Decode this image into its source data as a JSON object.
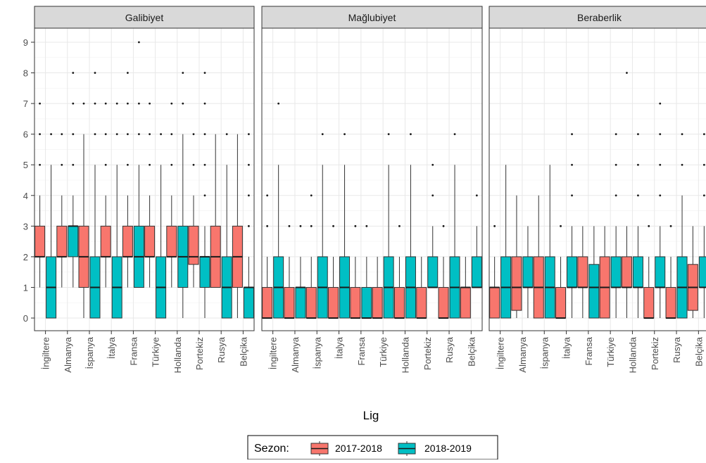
{
  "chart_data": {
    "type": "boxplot",
    "xlabel": "Lig",
    "ylabel": "",
    "ylim": [
      0,
      9
    ],
    "y_ticks": [
      0,
      1,
      2,
      3,
      4,
      5,
      6,
      7,
      8,
      9
    ],
    "grid": true,
    "legend": {
      "position": "bottom",
      "title": "Sezon:"
    },
    "categories": [
      "İngiltere",
      "Almanya",
      "İspanya",
      "İtalya",
      "Fransa",
      "Türkiye",
      "Hollanda",
      "Portekiz",
      "Rusya",
      "Belçika"
    ],
    "series": [
      {
        "name": "2017-2018",
        "color": "#F8766D"
      },
      {
        "name": "2018-2019",
        "color": "#00BFC4"
      }
    ],
    "facets": [
      {
        "title": "Galibiyet",
        "boxes": [
          [
            {
              "min": 1,
              "q1": 2,
              "median": 2,
              "q3": 3,
              "max": 4,
              "outliers": [
                5,
                6,
                7
              ]
            },
            {
              "min": 0,
              "q1": 0,
              "median": 1,
              "q3": 2,
              "max": 5,
              "outliers": [
                6
              ]
            }
          ],
          [
            {
              "min": 1,
              "q1": 2,
              "median": 2,
              "q3": 3,
              "max": 4,
              "outliers": [
                5,
                6
              ]
            },
            {
              "min": 1,
              "q1": 2,
              "median": 3,
              "q3": 3,
              "max": 4,
              "outliers": [
                5,
                6,
                7,
                8
              ]
            }
          ],
          [
            {
              "min": 0,
              "q1": 1,
              "median": 2,
              "q3": 3,
              "max": 6,
              "outliers": [
                7
              ]
            },
            {
              "min": 0,
              "q1": 0,
              "median": 1,
              "q3": 2,
              "max": 5,
              "outliers": [
                6,
                7,
                8
              ]
            }
          ],
          [
            {
              "min": 1,
              "q1": 2,
              "median": 2,
              "q3": 3,
              "max": 4,
              "outliers": [
                5,
                6,
                7
              ]
            },
            {
              "min": 0,
              "q1": 0,
              "median": 1,
              "q3": 2,
              "max": 5,
              "outliers": [
                6,
                7
              ]
            }
          ],
          [
            {
              "min": 1,
              "q1": 2,
              "median": 2,
              "q3": 3,
              "max": 4,
              "outliers": [
                5,
                6,
                7,
                8
              ]
            },
            {
              "min": 1,
              "q1": 1,
              "median": 2,
              "q3": 3,
              "max": 5,
              "outliers": [
                6,
                7,
                9
              ]
            }
          ],
          [
            {
              "min": 1,
              "q1": 2,
              "median": 2,
              "q3": 3,
              "max": 4,
              "outliers": [
                5,
                6,
                7
              ]
            },
            {
              "min": 0,
              "q1": 0,
              "median": 1,
              "q3": 2,
              "max": 5,
              "outliers": [
                6
              ]
            }
          ],
          [
            {
              "min": 1,
              "q1": 2,
              "median": 2,
              "q3": 3,
              "max": 4,
              "outliers": [
                5,
                6,
                7
              ]
            },
            {
              "min": 0,
              "q1": 1,
              "median": 2,
              "q3": 3,
              "max": 6,
              "outliers": [
                7,
                8
              ]
            }
          ],
          [
            {
              "min": 1,
              "q1": 1.75,
              "median": 2,
              "q3": 3,
              "max": 4,
              "outliers": [
                5,
                6
              ]
            },
            {
              "min": 0,
              "q1": 1,
              "median": 2,
              "q3": 2,
              "max": 3,
              "outliers": [
                4,
                5,
                6,
                7,
                8
              ]
            }
          ],
          [
            {
              "min": 1,
              "q1": 1,
              "median": 2,
              "q3": 3,
              "max": 6,
              "outliers": []
            },
            {
              "min": 0,
              "q1": 0,
              "median": 1,
              "q3": 2,
              "max": 5,
              "outliers": [
                6
              ]
            }
          ],
          [
            {
              "min": 0,
              "q1": 1,
              "median": 2,
              "q3": 3,
              "max": 6,
              "outliers": []
            },
            {
              "min": 0,
              "q1": 0,
              "median": 1,
              "q3": 1,
              "max": 2,
              "outliers": [
                3,
                4,
                5,
                6
              ]
            }
          ]
        ]
      },
      {
        "title": "Mağlubiyet",
        "boxes": [
          [
            {
              "min": 0,
              "q1": 0,
              "median": 0,
              "q3": 1,
              "max": 2,
              "outliers": [
                3,
                4
              ]
            },
            {
              "min": 0,
              "q1": 0,
              "median": 1,
              "q3": 2,
              "max": 5,
              "outliers": [
                7
              ]
            }
          ],
          [
            {
              "min": 0,
              "q1": 0,
              "median": 0,
              "q3": 1,
              "max": 2,
              "outliers": [
                3
              ]
            },
            {
              "min": 0,
              "q1": 0,
              "median": 1,
              "q3": 1,
              "max": 2,
              "outliers": [
                3
              ]
            }
          ],
          [
            {
              "min": 0,
              "q1": 0,
              "median": 0,
              "q3": 1,
              "max": 2,
              "outliers": [
                3,
                4
              ]
            },
            {
              "min": 0,
              "q1": 0,
              "median": 1,
              "q3": 2,
              "max": 5,
              "outliers": [
                6
              ]
            }
          ],
          [
            {
              "min": 0,
              "q1": 0,
              "median": 0,
              "q3": 1,
              "max": 2,
              "outliers": [
                3
              ]
            },
            {
              "min": 0,
              "q1": 0,
              "median": 1,
              "q3": 2,
              "max": 5,
              "outliers": [
                6
              ]
            }
          ],
          [
            {
              "min": 0,
              "q1": 0,
              "median": 0,
              "q3": 1,
              "max": 2,
              "outliers": [
                3
              ]
            },
            {
              "min": 0,
              "q1": 0,
              "median": 0,
              "q3": 1,
              "max": 2,
              "outliers": [
                3
              ]
            }
          ],
          [
            {
              "min": 0,
              "q1": 0,
              "median": 0,
              "q3": 1,
              "max": 2,
              "outliers": []
            },
            {
              "min": 0,
              "q1": 0,
              "median": 1,
              "q3": 2,
              "max": 5,
              "outliers": [
                6
              ]
            }
          ],
          [
            {
              "min": 0,
              "q1": 0,
              "median": 0,
              "q3": 1,
              "max": 2,
              "outliers": [
                3
              ]
            },
            {
              "min": 0,
              "q1": 0,
              "median": 1,
              "q3": 2,
              "max": 5,
              "outliers": [
                6
              ]
            }
          ],
          [
            {
              "min": 0,
              "q1": 0,
              "median": 0,
              "q3": 1,
              "max": 2,
              "outliers": []
            },
            {
              "min": 1,
              "q1": 1,
              "median": 1,
              "q3": 2,
              "max": 3,
              "outliers": [
                4,
                5
              ]
            }
          ],
          [
            {
              "min": 0,
              "q1": 0,
              "median": 0,
              "q3": 1,
              "max": 2,
              "outliers": [
                3
              ]
            },
            {
              "min": 0,
              "q1": 0,
              "median": 1,
              "q3": 2,
              "max": 5,
              "outliers": [
                6
              ]
            }
          ],
          [
            {
              "min": 0,
              "q1": 0,
              "median": 1,
              "q3": 1,
              "max": 2,
              "outliers": []
            },
            {
              "min": 1,
              "q1": 1,
              "median": 1,
              "q3": 2,
              "max": 3,
              "outliers": [
                4
              ]
            }
          ]
        ]
      },
      {
        "title": "Beraberlik",
        "boxes": [
          [
            {
              "min": 0,
              "q1": 0,
              "median": 1,
              "q3": 1,
              "max": 2,
              "outliers": [
                3
              ]
            },
            {
              "min": 0,
              "q1": 0,
              "median": 1,
              "q3": 2,
              "max": 5,
              "outliers": []
            }
          ],
          [
            {
              "min": 0,
              "q1": 0.25,
              "median": 1,
              "q3": 2,
              "max": 4,
              "outliers": []
            },
            {
              "min": 0,
              "q1": 1,
              "median": 1,
              "q3": 2,
              "max": 3,
              "outliers": []
            }
          ],
          [
            {
              "min": 0,
              "q1": 0,
              "median": 1,
              "q3": 2,
              "max": 4,
              "outliers": []
            },
            {
              "min": 0,
              "q1": 0,
              "median": 1,
              "q3": 2,
              "max": 5,
              "outliers": []
            }
          ],
          [
            {
              "min": 0,
              "q1": 0,
              "median": 0,
              "q3": 1,
              "max": 2,
              "outliers": [
                3
              ]
            },
            {
              "min": 0,
              "q1": 1,
              "median": 1,
              "q3": 2,
              "max": 3,
              "outliers": [
                4,
                5,
                6
              ]
            }
          ],
          [
            {
              "min": 0,
              "q1": 1,
              "median": 1,
              "q3": 2,
              "max": 3,
              "outliers": []
            },
            {
              "min": 0,
              "q1": 0,
              "median": 1,
              "q3": 1.75,
              "max": 3,
              "outliers": []
            }
          ],
          [
            {
              "min": 0,
              "q1": 0,
              "median": 1,
              "q3": 2,
              "max": 3,
              "outliers": []
            },
            {
              "min": 0,
              "q1": 1,
              "median": 1,
              "q3": 2,
              "max": 3,
              "outliers": [
                4,
                5,
                6
              ]
            }
          ],
          [
            {
              "min": 0,
              "q1": 1,
              "median": 1,
              "q3": 2,
              "max": 3,
              "outliers": [
                8
              ]
            },
            {
              "min": 0,
              "q1": 1,
              "median": 1,
              "q3": 2,
              "max": 3,
              "outliers": [
                4,
                5,
                6
              ]
            }
          ],
          [
            {
              "min": 0,
              "q1": 0,
              "median": 0,
              "q3": 1,
              "max": 2,
              "outliers": [
                3
              ]
            },
            {
              "min": 0,
              "q1": 1,
              "median": 1,
              "q3": 2,
              "max": 3,
              "outliers": [
                4,
                5,
                6,
                7
              ]
            }
          ],
          [
            {
              "min": 0,
              "q1": 0,
              "median": 0,
              "q3": 1,
              "max": 2,
              "outliers": [
                3
              ]
            },
            {
              "min": 0,
              "q1": 0,
              "median": 1,
              "q3": 2,
              "max": 4,
              "outliers": [
                5,
                6
              ]
            }
          ],
          [
            {
              "min": 0,
              "q1": 0.25,
              "median": 1,
              "q3": 1.75,
              "max": 3,
              "outliers": []
            },
            {
              "min": 0,
              "q1": 1,
              "median": 1,
              "q3": 2,
              "max": 3,
              "outliers": [
                4,
                5,
                6
              ]
            }
          ]
        ]
      }
    ]
  }
}
